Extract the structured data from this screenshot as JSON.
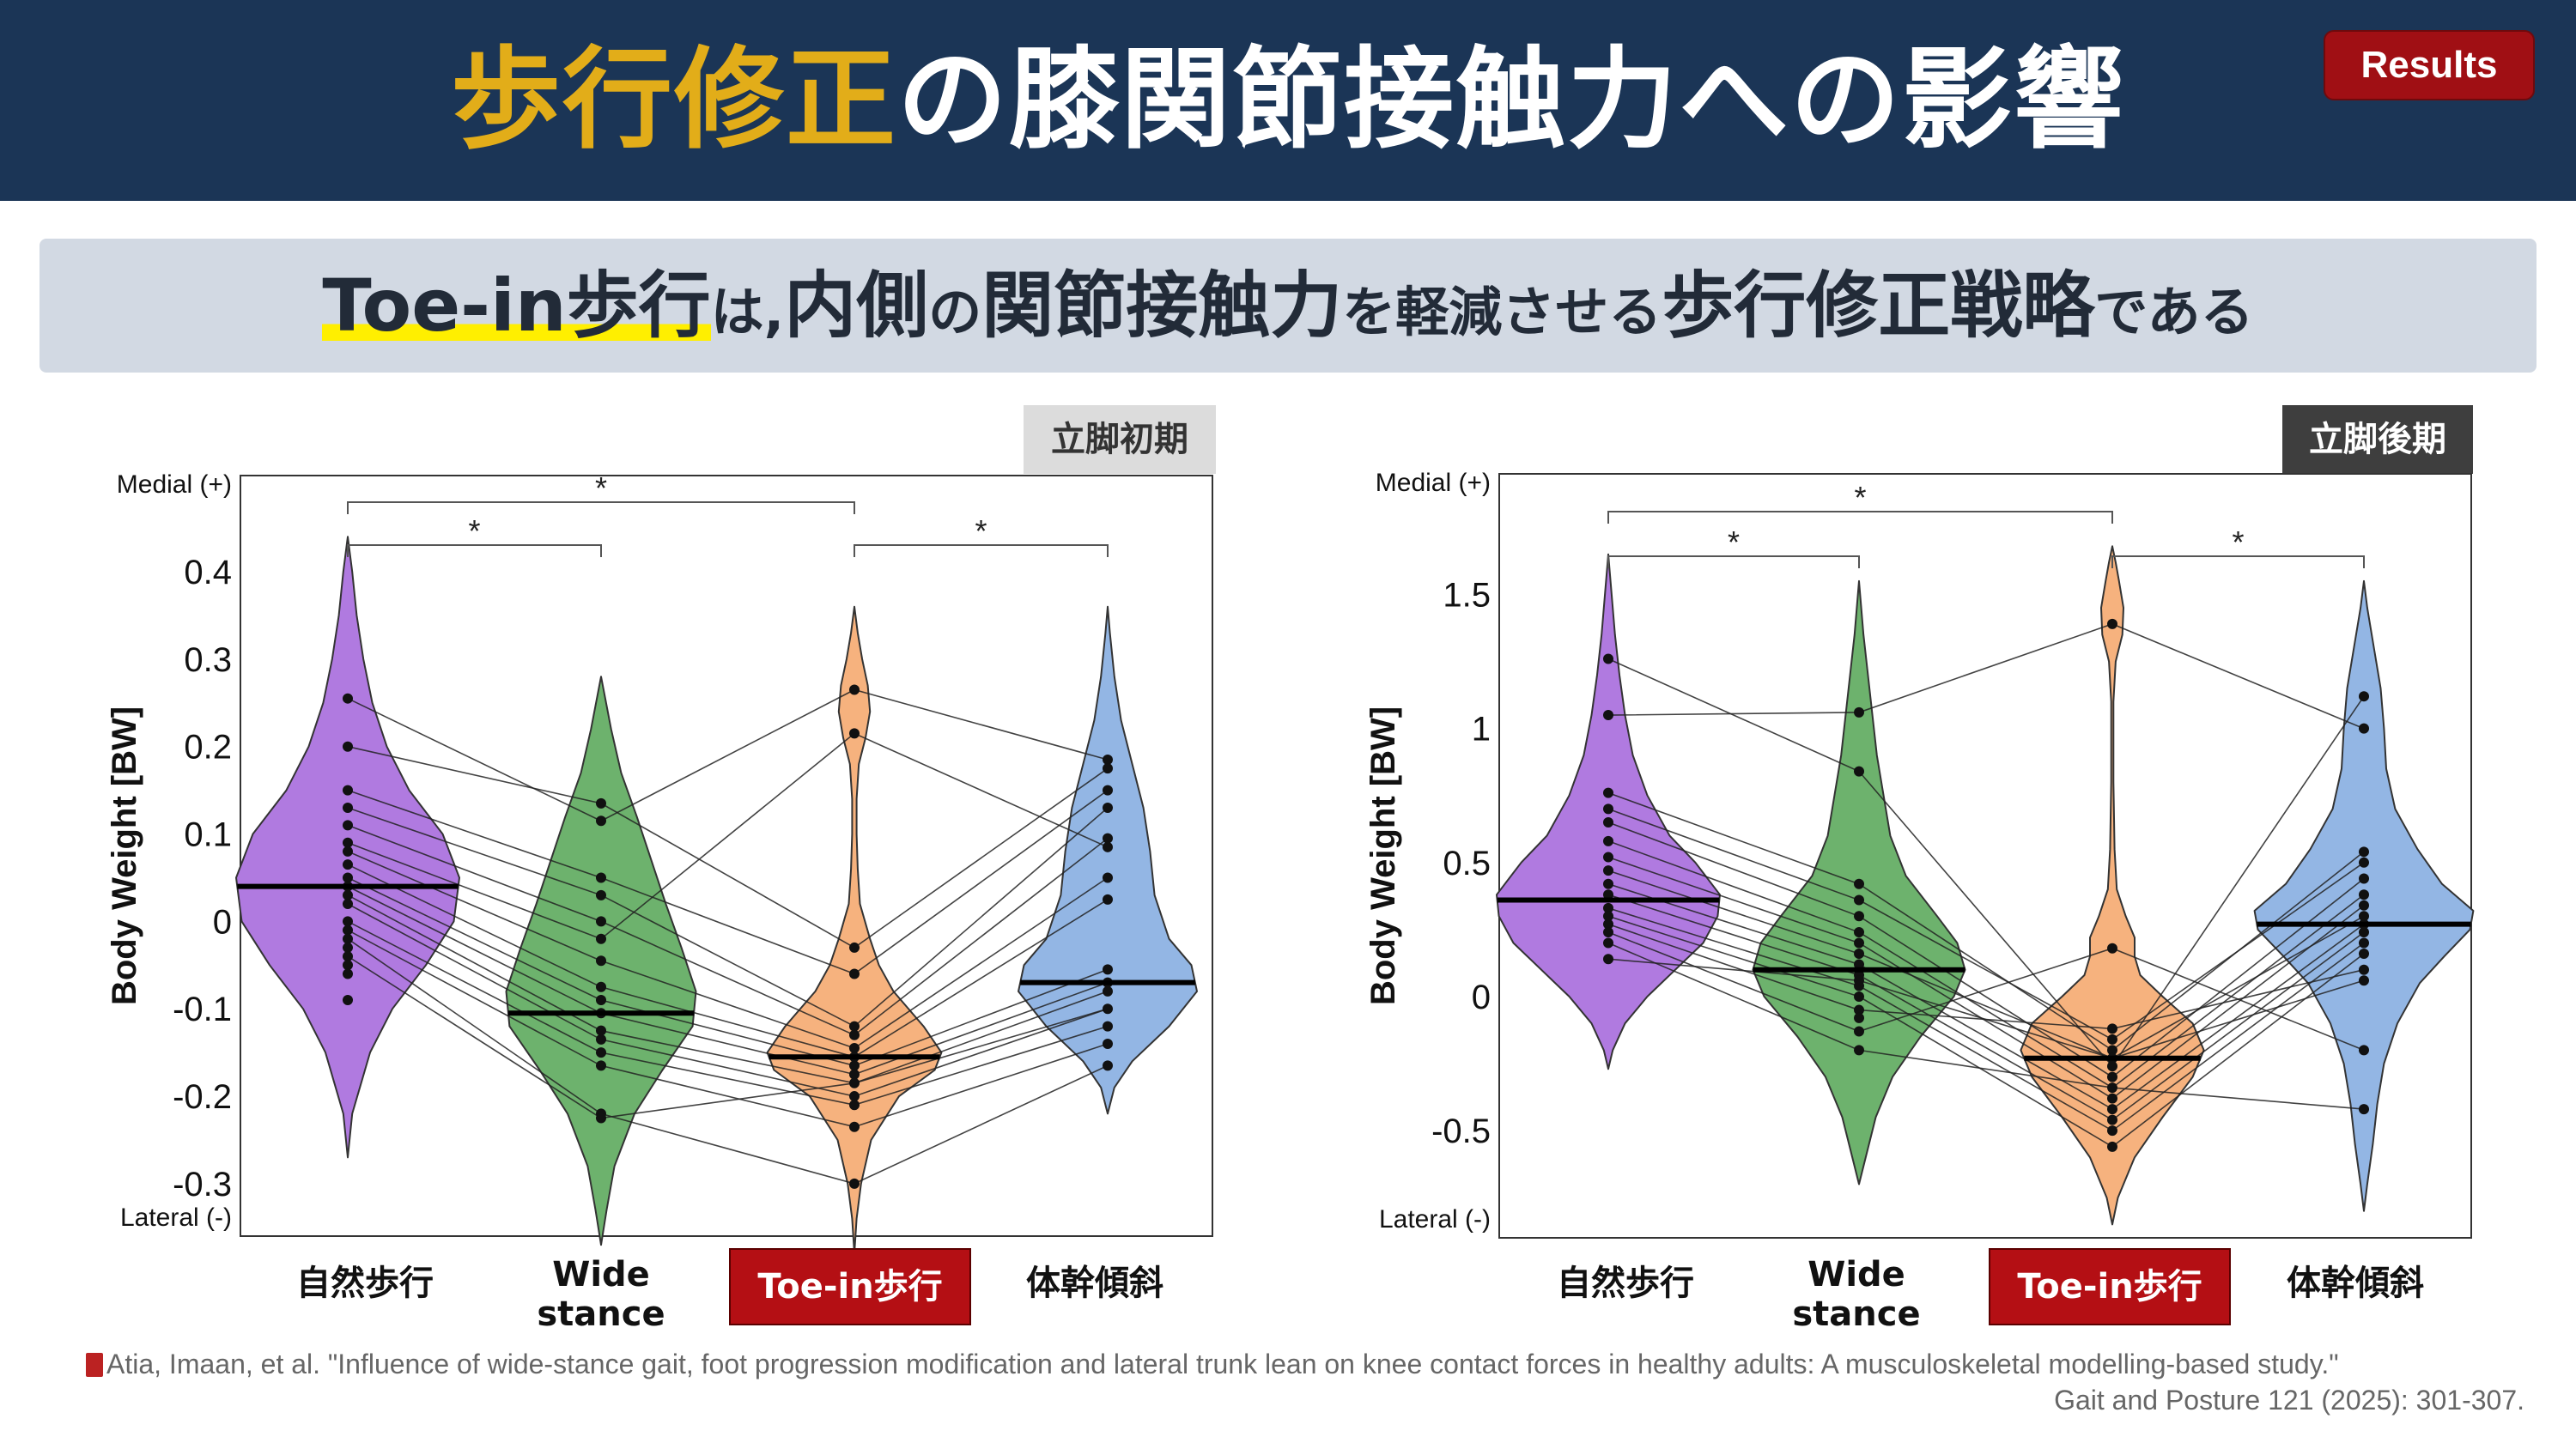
{
  "header": {
    "title_highlight": "歩行修正",
    "title_rest": "の膝関節接触力への影響",
    "badge": "Results"
  },
  "subtitle": {
    "p1": "Toe-in歩行",
    "p2": "は,",
    "p3": "内側",
    "p4": "の",
    "p5": "関節接触力",
    "p6": "を軽減させる",
    "p7": "歩行修正戦略",
    "p8": "である"
  },
  "colors": {
    "natural": "#b07ae0",
    "wide": "#6db26d",
    "toein": "#f6b27e",
    "trunk": "#93b6e4",
    "header_bg": "#1b3556",
    "title_accent": "#e2ad19",
    "badge_bg": "#a00f14"
  },
  "conditions": {
    "natural": "自然歩行",
    "wide_l1": "Wide",
    "wide_l2": "stance",
    "toein": "Toe-in歩行",
    "trunk": "体幹傾斜"
  },
  "citation": {
    "line1": "Atia, Imaan, et al. \"Influence of wide-stance gait, foot progression modification and lateral trunk lean on knee contact forces in healthy adults: A musculoskeletal modelling-based study.\"",
    "line2": "Gait and Posture 121 (2025): 301-307."
  },
  "chart_data": [
    {
      "type": "violin",
      "panel": "立脚初期",
      "ylabel": "Body Weight [BW]",
      "ylim": [
        -0.36,
        0.51
      ],
      "yticks": [
        0.4,
        0.3,
        0.2,
        0.1,
        0,
        -0.1,
        -0.2,
        -0.3
      ],
      "ytick_labels": [
        "0.4",
        "0.3",
        "0.2",
        "0.1",
        "0",
        "-0.1",
        "-0.2",
        "-0.3"
      ],
      "medial_label": "Medial (+)",
      "lateral_label": "Lateral (-)",
      "categories": [
        "自然歩行",
        "Wide stance",
        "Toe-in歩行",
        "体幹傾斜"
      ],
      "medians": [
        0.04,
        -0.105,
        -0.155,
        -0.07
      ],
      "significance": [
        {
          "from": 0,
          "to": 1,
          "label": "*"
        },
        {
          "from": 0,
          "to": 2,
          "label": "*"
        },
        {
          "from": 2,
          "to": 3,
          "label": "*"
        }
      ],
      "series": [
        {
          "name": "自然歩行",
          "violin": [
            [
              -0.27,
              0.0
            ],
            [
              -0.22,
              0.04
            ],
            [
              -0.15,
              0.2
            ],
            [
              -0.1,
              0.4
            ],
            [
              -0.05,
              0.7
            ],
            [
              0.0,
              0.95
            ],
            [
              0.05,
              1.0
            ],
            [
              0.1,
              0.85
            ],
            [
              0.15,
              0.55
            ],
            [
              0.2,
              0.35
            ],
            [
              0.25,
              0.22
            ],
            [
              0.3,
              0.14
            ],
            [
              0.35,
              0.08
            ],
            [
              0.4,
              0.04
            ],
            [
              0.44,
              0.0
            ]
          ],
          "points": [
            0.255,
            0.2,
            0.15,
            0.13,
            0.11,
            0.09,
            0.08,
            0.065,
            0.05,
            0.04,
            0.03,
            0.02,
            0.0,
            -0.01,
            -0.02,
            -0.03,
            -0.04,
            -0.05,
            -0.06,
            -0.09
          ]
        },
        {
          "name": "Wide stance",
          "violin": [
            [
              -0.37,
              0.0
            ],
            [
              -0.33,
              0.05
            ],
            [
              -0.28,
              0.12
            ],
            [
              -0.22,
              0.3
            ],
            [
              -0.17,
              0.55
            ],
            [
              -0.12,
              0.82
            ],
            [
              -0.08,
              0.85
            ],
            [
              -0.03,
              0.72
            ],
            [
              0.02,
              0.58
            ],
            [
              0.07,
              0.45
            ],
            [
              0.12,
              0.32
            ],
            [
              0.17,
              0.18
            ],
            [
              0.22,
              0.09
            ],
            [
              0.26,
              0.03
            ],
            [
              0.28,
              0.0
            ]
          ],
          "points": [
            0.135,
            0.115,
            0.05,
            0.03,
            0.0,
            -0.02,
            -0.045,
            -0.075,
            -0.09,
            -0.105,
            -0.125,
            -0.135,
            -0.15,
            -0.165,
            -0.22,
            -0.225
          ]
        },
        {
          "name": "Toe-in歩行",
          "violin": [
            [
              -0.38,
              0.0
            ],
            [
              -0.34,
              0.02
            ],
            [
              -0.3,
              0.06
            ],
            [
              -0.25,
              0.15
            ],
            [
              -0.2,
              0.4
            ],
            [
              -0.17,
              0.72
            ],
            [
              -0.15,
              0.78
            ],
            [
              -0.12,
              0.62
            ],
            [
              -0.08,
              0.35
            ],
            [
              -0.05,
              0.22
            ],
            [
              -0.02,
              0.14
            ],
            [
              0.02,
              0.05
            ],
            [
              0.06,
              0.03
            ],
            [
              0.1,
              0.02
            ],
            [
              0.14,
              0.02
            ],
            [
              0.18,
              0.04
            ],
            [
              0.21,
              0.1
            ],
            [
              0.24,
              0.14
            ],
            [
              0.27,
              0.12
            ],
            [
              0.3,
              0.07
            ],
            [
              0.33,
              0.03
            ],
            [
              0.36,
              0.0
            ]
          ],
          "points": [
            0.265,
            0.215,
            -0.03,
            -0.06,
            -0.12,
            -0.13,
            -0.145,
            -0.155,
            -0.165,
            -0.175,
            -0.185,
            -0.2,
            -0.21,
            -0.235,
            -0.3
          ]
        },
        {
          "name": "体幹傾斜",
          "violin": [
            [
              -0.22,
              0.0
            ],
            [
              -0.19,
              0.06
            ],
            [
              -0.16,
              0.22
            ],
            [
              -0.12,
              0.55
            ],
            [
              -0.08,
              0.8
            ],
            [
              -0.05,
              0.75
            ],
            [
              -0.02,
              0.55
            ],
            [
              0.03,
              0.42
            ],
            [
              0.08,
              0.38
            ],
            [
              0.13,
              0.32
            ],
            [
              0.18,
              0.22
            ],
            [
              0.23,
              0.12
            ],
            [
              0.28,
              0.06
            ],
            [
              0.33,
              0.02
            ],
            [
              0.36,
              0.0
            ]
          ],
          "points": [
            0.185,
            0.175,
            0.15,
            0.13,
            0.095,
            0.085,
            0.05,
            0.025,
            -0.055,
            -0.07,
            -0.08,
            -0.1,
            -0.12,
            -0.14,
            -0.165
          ]
        }
      ],
      "paired_lines": [
        [
          0.255,
          0.115,
          0.265,
          0.185
        ],
        [
          0.2,
          0.135,
          -0.03,
          0.175
        ],
        [
          0.15,
          0.05,
          -0.06,
          0.15
        ],
        [
          0.13,
          0.03,
          -0.12,
          0.13
        ],
        [
          0.11,
          0.0,
          -0.13,
          0.095
        ],
        [
          0.09,
          -0.02,
          0.215,
          0.085
        ],
        [
          0.08,
          -0.045,
          -0.145,
          0.05
        ],
        [
          0.065,
          -0.075,
          -0.155,
          0.025
        ],
        [
          0.05,
          -0.09,
          -0.165,
          -0.055
        ],
        [
          0.04,
          -0.105,
          -0.175,
          -0.07
        ],
        [
          0.03,
          -0.125,
          -0.185,
          -0.08
        ],
        [
          0.02,
          -0.135,
          -0.2,
          -0.1
        ],
        [
          0.0,
          -0.15,
          -0.21,
          -0.12
        ],
        [
          -0.01,
          -0.165,
          -0.235,
          -0.14
        ],
        [
          -0.02,
          -0.22,
          -0.3,
          -0.165
        ],
        [
          -0.04,
          -0.225,
          -0.185,
          -0.1
        ]
      ]
    },
    {
      "type": "violin",
      "panel": "立脚後期",
      "ylabel": "Body Weight [BW]",
      "ylim": [
        -0.9,
        1.95
      ],
      "yticks": [
        1.5,
        1,
        0.5,
        0,
        -0.5
      ],
      "ytick_labels": [
        "1.5",
        "1",
        "0.5",
        "0",
        "-0.5"
      ],
      "medial_label": "Medial (+)",
      "lateral_label": "Lateral (-)",
      "categories": [
        "自然歩行",
        "Wide stance",
        "Toe-in歩行",
        "体幹傾斜"
      ],
      "medians": [
        0.36,
        0.1,
        -0.23,
        0.27
      ],
      "significance": [
        {
          "from": 0,
          "to": 1,
          "label": "*"
        },
        {
          "from": 0,
          "to": 2,
          "label": "*"
        },
        {
          "from": 2,
          "to": 3,
          "label": "*"
        }
      ],
      "series": [
        {
          "name": "自然歩行",
          "violin": [
            [
              -0.27,
              0.0
            ],
            [
              -0.2,
              0.04
            ],
            [
              -0.1,
              0.15
            ],
            [
              0.0,
              0.35
            ],
            [
              0.1,
              0.6
            ],
            [
              0.2,
              0.85
            ],
            [
              0.3,
              0.98
            ],
            [
              0.38,
              1.0
            ],
            [
              0.5,
              0.78
            ],
            [
              0.6,
              0.55
            ],
            [
              0.75,
              0.35
            ],
            [
              0.9,
              0.22
            ],
            [
              1.05,
              0.15
            ],
            [
              1.2,
              0.1
            ],
            [
              1.35,
              0.06
            ],
            [
              1.5,
              0.03
            ],
            [
              1.65,
              0.0
            ]
          ],
          "points": [
            1.26,
            1.05,
            0.76,
            0.7,
            0.65,
            0.58,
            0.52,
            0.47,
            0.42,
            0.38,
            0.33,
            0.3,
            0.27,
            0.24,
            0.2,
            0.14
          ]
        },
        {
          "name": "Wide stance",
          "violin": [
            [
              -0.7,
              0.0
            ],
            [
              -0.6,
              0.06
            ],
            [
              -0.45,
              0.15
            ],
            [
              -0.3,
              0.3
            ],
            [
              -0.15,
              0.55
            ],
            [
              0.0,
              0.85
            ],
            [
              0.1,
              0.95
            ],
            [
              0.2,
              0.88
            ],
            [
              0.3,
              0.7
            ],
            [
              0.45,
              0.42
            ],
            [
              0.6,
              0.28
            ],
            [
              0.75,
              0.22
            ],
            [
              0.9,
              0.16
            ],
            [
              1.05,
              0.12
            ],
            [
              1.2,
              0.08
            ],
            [
              1.35,
              0.04
            ],
            [
              1.55,
              0.0
            ]
          ],
          "points": [
            1.06,
            0.84,
            0.42,
            0.36,
            0.3,
            0.24,
            0.2,
            0.16,
            0.12,
            0.08,
            0.06,
            0.04,
            0.0,
            -0.05,
            -0.08,
            -0.13,
            -0.2
          ]
        },
        {
          "name": "Toe-in歩行",
          "violin": [
            [
              -0.85,
              0.0
            ],
            [
              -0.75,
              0.05
            ],
            [
              -0.6,
              0.2
            ],
            [
              -0.45,
              0.45
            ],
            [
              -0.3,
              0.72
            ],
            [
              -0.2,
              0.82
            ],
            [
              -0.1,
              0.72
            ],
            [
              0.0,
              0.45
            ],
            [
              0.08,
              0.25
            ],
            [
              0.15,
              0.2
            ],
            [
              0.22,
              0.2
            ],
            [
              0.3,
              0.12
            ],
            [
              0.4,
              0.04
            ],
            [
              0.55,
              0.02
            ],
            [
              0.8,
              0.01
            ],
            [
              1.1,
              0.01
            ],
            [
              1.25,
              0.03
            ],
            [
              1.35,
              0.09
            ],
            [
              1.45,
              0.1
            ],
            [
              1.55,
              0.06
            ],
            [
              1.62,
              0.03
            ],
            [
              1.68,
              0.0
            ]
          ],
          "points": [
            1.39,
            0.18,
            -0.12,
            -0.16,
            -0.2,
            -0.23,
            -0.26,
            -0.3,
            -0.34,
            -0.38,
            -0.42,
            -0.46,
            -0.5,
            -0.56
          ]
        },
        {
          "name": "体幹傾斜",
          "violin": [
            [
              -0.8,
              0.0
            ],
            [
              -0.7,
              0.03
            ],
            [
              -0.55,
              0.08
            ],
            [
              -0.4,
              0.12
            ],
            [
              -0.25,
              0.18
            ],
            [
              -0.1,
              0.3
            ],
            [
              0.05,
              0.5
            ],
            [
              0.15,
              0.72
            ],
            [
              0.25,
              0.95
            ],
            [
              0.32,
              0.98
            ],
            [
              0.42,
              0.7
            ],
            [
              0.55,
              0.48
            ],
            [
              0.7,
              0.28
            ],
            [
              0.85,
              0.2
            ],
            [
              1.0,
              0.18
            ],
            [
              1.15,
              0.15
            ],
            [
              1.3,
              0.09
            ],
            [
              1.45,
              0.03
            ],
            [
              1.55,
              0.0
            ]
          ],
          "points": [
            1.12,
            1.0,
            0.54,
            0.5,
            0.44,
            0.38,
            0.34,
            0.3,
            0.27,
            0.24,
            0.2,
            0.16,
            0.1,
            0.06,
            -0.2,
            -0.42
          ]
        }
      ],
      "paired_lines": [
        [
          1.26,
          0.84,
          -0.26,
          1.12
        ],
        [
          1.05,
          1.06,
          1.39,
          1.0
        ],
        [
          0.76,
          0.42,
          -0.2,
          0.54
        ],
        [
          0.7,
          0.36,
          -0.16,
          0.5
        ],
        [
          0.65,
          0.3,
          -0.3,
          0.44
        ],
        [
          0.58,
          0.24,
          -0.34,
          0.38
        ],
        [
          0.52,
          0.2,
          -0.38,
          0.34
        ],
        [
          0.47,
          0.16,
          -0.23,
          0.3
        ],
        [
          0.42,
          0.12,
          -0.42,
          0.27
        ],
        [
          0.38,
          0.08,
          -0.46,
          0.24
        ],
        [
          0.33,
          0.04,
          -0.5,
          0.2
        ],
        [
          0.3,
          0.0,
          -0.56,
          0.16
        ],
        [
          0.27,
          -0.05,
          -0.12,
          0.1
        ],
        [
          0.24,
          -0.13,
          0.18,
          -0.2
        ],
        [
          0.2,
          -0.2,
          -0.34,
          -0.42
        ],
        [
          0.14,
          0.06,
          -0.23,
          0.06
        ]
      ]
    }
  ]
}
